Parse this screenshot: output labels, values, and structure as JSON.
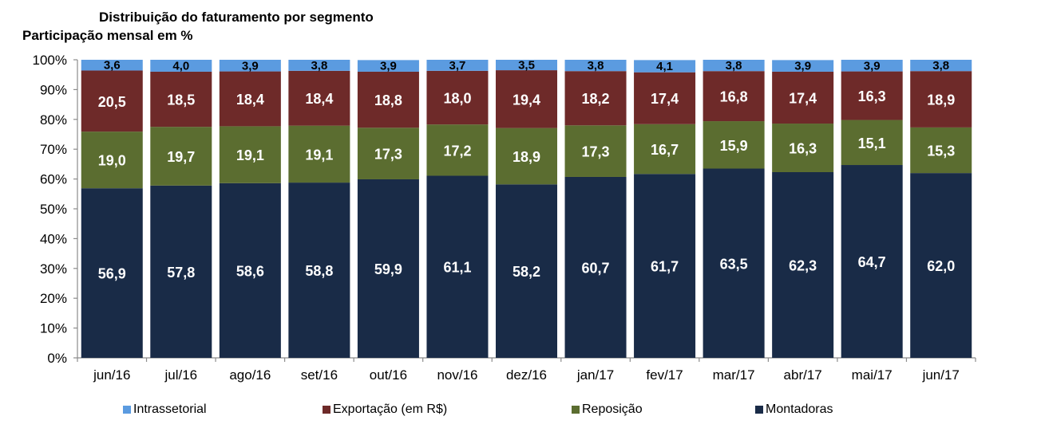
{
  "chart_data": {
    "type": "bar",
    "stacked": true,
    "title": "Distribuição do faturamento por segmento",
    "subtitle": "Participação mensal em %",
    "xlabel": "",
    "ylabel": "",
    "ylim": [
      0,
      100
    ],
    "yticks": [
      0,
      10,
      20,
      30,
      40,
      50,
      60,
      70,
      80,
      90,
      100
    ],
    "ytick_labels": [
      "0%",
      "10%",
      "20%",
      "30%",
      "40%",
      "50%",
      "60%",
      "70%",
      "80%",
      "90%",
      "100%"
    ],
    "grid": false,
    "legend_position": "bottom",
    "categories": [
      "jun/16",
      "jul/16",
      "ago/16",
      "set/16",
      "out/16",
      "nov/16",
      "dez/16",
      "jan/17",
      "fev/17",
      "mar/17",
      "abr/17",
      "mai/17",
      "jun/17"
    ],
    "series": [
      {
        "name": "Montadoras",
        "color": "#192b47",
        "label_color": "#ffffff",
        "values": [
          56.9,
          57.8,
          58.6,
          58.8,
          59.9,
          61.1,
          58.2,
          60.7,
          61.7,
          63.5,
          62.3,
          64.7,
          62.0
        ],
        "labels": [
          "56,9",
          "57,8",
          "58,6",
          "58,8",
          "59,9",
          "61,1",
          "58,2",
          "60,7",
          "61,7",
          "63,5",
          "62,3",
          "64,7",
          "62,0"
        ]
      },
      {
        "name": "Reposição",
        "color": "#5b6d30",
        "label_color": "#ffffff",
        "values": [
          19.0,
          19.7,
          19.1,
          19.1,
          17.3,
          17.2,
          18.9,
          17.3,
          16.7,
          15.9,
          16.3,
          15.1,
          15.3
        ],
        "labels": [
          "19,0",
          "19,7",
          "19,1",
          "19,1",
          "17,3",
          "17,2",
          "18,9",
          "17,3",
          "16,7",
          "15,9",
          "16,3",
          "15,1",
          "15,3"
        ]
      },
      {
        "name": "Exportação (em R$)",
        "color": "#6e2a29",
        "label_color": "#ffffff",
        "values": [
          20.5,
          18.5,
          18.4,
          18.4,
          18.8,
          18.0,
          19.4,
          18.2,
          17.4,
          16.8,
          17.4,
          16.3,
          18.9
        ],
        "labels": [
          "20,5",
          "18,5",
          "18,4",
          "18,4",
          "18,8",
          "18,0",
          "19,4",
          "18,2",
          "17,4",
          "16,8",
          "17,4",
          "16,3",
          "18,9"
        ]
      },
      {
        "name": "Intrassetorial",
        "color": "#5b9be0",
        "label_color": "#000000",
        "values": [
          3.6,
          4.0,
          3.9,
          3.8,
          3.9,
          3.7,
          3.5,
          3.8,
          4.1,
          3.8,
          3.9,
          3.9,
          3.8
        ],
        "labels": [
          "3,6",
          "4,0",
          "3,9",
          "3,8",
          "3,9",
          "3,7",
          "3,5",
          "3,8",
          "4,1",
          "3,8",
          "3,9",
          "3,9",
          "3,8"
        ]
      }
    ],
    "legend_order": [
      "Intrassetorial",
      "Exportação (em R$)",
      "Reposição",
      "Montadoras"
    ]
  }
}
